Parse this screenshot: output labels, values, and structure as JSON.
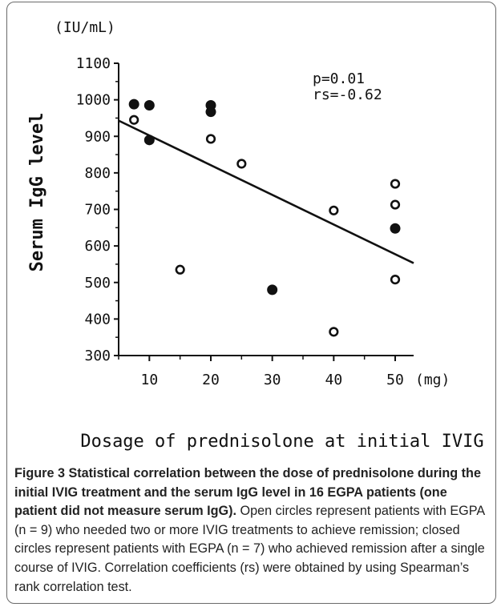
{
  "chart_data": {
    "type": "scatter",
    "y_unit": "(IU/mL)",
    "x_unit": "(mg)",
    "ylabel": "Serum IgG level",
    "xlabel": "Dosage of prednisolone at initial IVIG",
    "xticks": [
      10,
      20,
      30,
      40,
      50
    ],
    "yticks": [
      300,
      400,
      500,
      600,
      700,
      800,
      900,
      1000,
      1100
    ],
    "xlim": [
      5,
      53
    ],
    "ylim": [
      300,
      1100
    ],
    "annotation": [
      "p=0.01",
      "rs=-0.62"
    ],
    "series": [
      {
        "marker": "open-circle",
        "points": [
          [
            7.5,
            945
          ],
          [
            15,
            535
          ],
          [
            20,
            893
          ],
          [
            25,
            825
          ],
          [
            40,
            697
          ],
          [
            40,
            365
          ],
          [
            50,
            770
          ],
          [
            50,
            713
          ],
          [
            50,
            508
          ]
        ]
      },
      {
        "marker": "closed-circle",
        "points": [
          [
            7.5,
            988
          ],
          [
            10,
            985
          ],
          [
            10,
            890
          ],
          [
            20,
            985
          ],
          [
            20,
            967
          ],
          [
            30,
            480
          ],
          [
            50,
            648
          ]
        ]
      }
    ],
    "trendline": [
      [
        5,
        943
      ],
      [
        53,
        553
      ]
    ]
  },
  "caption": {
    "label": "Figure 3",
    "title": "Statistical correlation between the dose of prednisolone during the initial IVIG treatment and the serum IgG level in 16 EGPA patients (one patient did not measure serum IgG).",
    "body": "Open circles represent patients with EGPA (n = 9) who needed two or more IVIG treatments to achieve remission; closed circles represent patients with EGPA (n = 7) who achieved remission after a single course of IVIG. Correlation coefficients (rs) were obtained by using Spearman’s rank correlation test."
  },
  "colors": {
    "ink": "#111111",
    "frame": "#6a6a6a"
  }
}
